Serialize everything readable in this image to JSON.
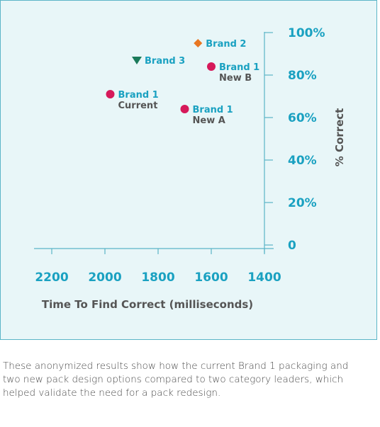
{
  "chart_data": {
    "type": "scatter",
    "xlabel": "Time To Find Correct (milliseconds)",
    "ylabel": "% Correct",
    "xlim": [
      2300,
      1400
    ],
    "ylim": [
      0,
      100
    ],
    "x_reversed": true,
    "x_ticks": [
      2200,
      2000,
      1800,
      1600,
      1400
    ],
    "y_ticks": [
      {
        "value": 0,
        "label": "0"
      },
      {
        "value": 20,
        "label": "20%"
      },
      {
        "value": 40,
        "label": "40%"
      },
      {
        "value": 60,
        "label": "60%"
      },
      {
        "value": 80,
        "label": "80%"
      },
      {
        "value": 100,
        "label": "100%"
      }
    ],
    "grid": false,
    "y_axis_position": "right",
    "points": [
      {
        "x": 1980,
        "y": 71,
        "label": "Brand 1",
        "sublabel": "Current",
        "marker": "circle",
        "color": "#d6195a"
      },
      {
        "x": 1700,
        "y": 64,
        "label": "Brand 1",
        "sublabel": "New A",
        "marker": "circle",
        "color": "#d6195a"
      },
      {
        "x": 1600,
        "y": 84,
        "label": "Brand 1",
        "sublabel": "New B",
        "marker": "circle",
        "color": "#d6195a"
      },
      {
        "x": 1880,
        "y": 87,
        "label": "Brand 3",
        "sublabel": "",
        "marker": "triangle-down",
        "color": "#1a7a5a"
      },
      {
        "x": 1650,
        "y": 95,
        "label": "Brand 2",
        "sublabel": "",
        "marker": "diamond",
        "color": "#e87722"
      }
    ]
  },
  "caption": "These anonymized results show how the current Brand 1 packaging and two new pack design options compared to two category leaders, which helped validate the need for a pack redesign.",
  "colors": {
    "panel_background": "#e8f6f8",
    "panel_border": "#5bb5c7",
    "axis": "#5bb5c7",
    "tick_label": "#1aa1c1",
    "point_label": "#1aa1c1",
    "sublabel": "#555555",
    "axis_title": "#555555"
  }
}
